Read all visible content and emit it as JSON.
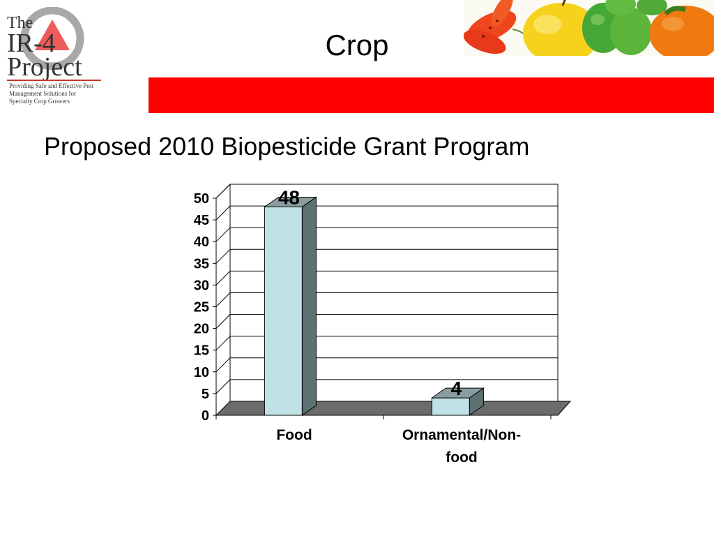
{
  "logo": {
    "line1": "The",
    "line2": "IR-4",
    "line3": "Project",
    "tagline": [
      "Providing Safe and Effective Pest",
      "Management Solutions for",
      "Specialty Crop Growers"
    ]
  },
  "header": {
    "title": "Crop"
  },
  "subtitle": "Proposed 2010 Biopesticide Grant Program",
  "colors": {
    "accent_red": "#ff0000",
    "bar_face": "#c0e2e6",
    "bar_side": "#5f7073",
    "floor": "#6b6b6b"
  },
  "chart_data": {
    "type": "bar",
    "categories": [
      "Food",
      "Ornamental/Non-food"
    ],
    "category_lines": [
      [
        "Food"
      ],
      [
        "Ornamental/Non-",
        "food"
      ]
    ],
    "values": [
      48,
      4
    ],
    "data_labels": [
      "48",
      "4"
    ],
    "yticks": [
      "0",
      "5",
      "10",
      "15",
      "20",
      "25",
      "30",
      "35",
      "40",
      "45",
      "50"
    ],
    "ylim": [
      0,
      50
    ],
    "grid": true,
    "style": "3d-bar"
  }
}
